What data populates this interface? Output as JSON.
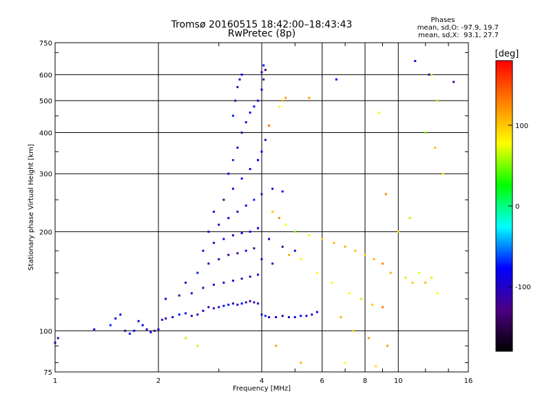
{
  "chart_data": {
    "type": "scatter",
    "title": "Tromsø 20160515 18:42:00–18:43:43",
    "subtitle": "RwPretec (8p)",
    "xlabel": "Frequency [MHz]",
    "ylabel": "Stationary phase Virtual Height [km]",
    "x_scale": "log",
    "y_scale": "log",
    "xlim": [
      1,
      16
    ],
    "ylim": [
      75,
      750
    ],
    "x_ticks": [
      "1",
      "2",
      "4",
      "6",
      "8",
      "10",
      "16"
    ],
    "x_tick_values": [
      1,
      2,
      4,
      6,
      8,
      10,
      16
    ],
    "y_ticks": [
      "75",
      "100",
      "200",
      "300",
      "400",
      "500",
      "600",
      "750"
    ],
    "y_tick_values": [
      75,
      100,
      200,
      300,
      400,
      500,
      600,
      750
    ],
    "grid": true,
    "legend": {
      "heading": "Phases",
      "lines": [
        "mean, sd,O: -97.9, 19.7",
        "mean, sd,X:  93.1, 27.7"
      ]
    },
    "colorbar": {
      "label": "[deg]",
      "range": [
        -180,
        180
      ],
      "ticks": [
        "100",
        "0",
        "-100"
      ],
      "tick_values": [
        100,
        0,
        -100
      ],
      "colormap": [
        "#000000",
        "#4b0082",
        "#0000ff",
        "#00ffff",
        "#00ff00",
        "#ffff00",
        "#ff8000",
        "#ff0000"
      ]
    },
    "series": [
      {
        "mean_phase": -97.9,
        "sd_phase": 19.7,
        "points": [
          [
            1.0,
            92
          ],
          [
            1.02,
            95
          ],
          [
            1.3,
            101
          ],
          [
            1.45,
            104
          ],
          [
            1.5,
            109
          ],
          [
            1.55,
            112
          ],
          [
            1.6,
            100
          ],
          [
            1.65,
            98
          ],
          [
            1.7,
            100
          ],
          [
            1.75,
            107
          ],
          [
            1.8,
            104
          ],
          [
            1.85,
            101
          ],
          [
            1.9,
            99
          ],
          [
            1.95,
            100
          ],
          [
            2.0,
            101
          ],
          [
            2.05,
            108
          ],
          [
            2.1,
            109
          ],
          [
            2.2,
            110
          ],
          [
            2.3,
            112
          ],
          [
            2.4,
            113
          ],
          [
            2.5,
            111
          ],
          [
            2.6,
            112
          ],
          [
            2.7,
            115
          ],
          [
            2.8,
            118
          ],
          [
            2.9,
            117
          ],
          [
            3.0,
            118
          ],
          [
            3.1,
            119
          ],
          [
            3.2,
            120
          ],
          [
            3.3,
            121
          ],
          [
            3.4,
            120
          ],
          [
            3.5,
            121
          ],
          [
            3.6,
            122
          ],
          [
            3.7,
            123
          ],
          [
            3.8,
            122
          ],
          [
            3.9,
            121
          ],
          [
            4.0,
            112
          ],
          [
            4.1,
            111
          ],
          [
            4.2,
            110
          ],
          [
            4.4,
            110
          ],
          [
            4.6,
            111
          ],
          [
            4.8,
            110
          ],
          [
            5.0,
            110
          ],
          [
            5.2,
            111
          ],
          [
            5.4,
            111
          ],
          [
            5.6,
            112
          ],
          [
            5.8,
            114
          ],
          [
            2.1,
            125
          ],
          [
            2.3,
            128
          ],
          [
            2.5,
            130
          ],
          [
            2.7,
            135
          ],
          [
            2.9,
            138
          ],
          [
            3.1,
            140
          ],
          [
            3.3,
            142
          ],
          [
            3.5,
            144
          ],
          [
            3.7,
            146
          ],
          [
            3.9,
            148
          ],
          [
            2.4,
            140
          ],
          [
            2.6,
            150
          ],
          [
            2.8,
            160
          ],
          [
            3.0,
            165
          ],
          [
            3.2,
            170
          ],
          [
            3.4,
            172
          ],
          [
            3.6,
            175
          ],
          [
            3.8,
            178
          ],
          [
            4.0,
            165
          ],
          [
            4.3,
            160
          ],
          [
            2.7,
            175
          ],
          [
            2.9,
            185
          ],
          [
            3.1,
            190
          ],
          [
            3.3,
            195
          ],
          [
            3.5,
            198
          ],
          [
            3.7,
            200
          ],
          [
            3.9,
            205
          ],
          [
            4.2,
            190
          ],
          [
            4.6,
            180
          ],
          [
            5.0,
            175
          ],
          [
            2.8,
            200
          ],
          [
            3.0,
            210
          ],
          [
            3.2,
            220
          ],
          [
            3.4,
            230
          ],
          [
            3.6,
            240
          ],
          [
            3.8,
            250
          ],
          [
            4.0,
            260
          ],
          [
            4.3,
            270
          ],
          [
            4.6,
            265
          ],
          [
            2.9,
            230
          ],
          [
            3.1,
            250
          ],
          [
            3.3,
            270
          ],
          [
            3.5,
            290
          ],
          [
            3.7,
            310
          ],
          [
            3.9,
            330
          ],
          [
            4.0,
            350
          ],
          [
            4.1,
            380
          ],
          [
            3.2,
            300
          ],
          [
            3.3,
            330
          ],
          [
            3.4,
            360
          ],
          [
            3.5,
            400
          ],
          [
            3.6,
            430
          ],
          [
            3.7,
            460
          ],
          [
            3.8,
            480
          ],
          [
            3.9,
            500
          ],
          [
            4.0,
            540
          ],
          [
            4.05,
            580
          ],
          [
            3.3,
            450
          ],
          [
            3.35,
            500
          ],
          [
            3.4,
            550
          ],
          [
            3.45,
            580
          ],
          [
            3.5,
            600
          ],
          [
            4.0,
            610
          ],
          [
            4.05,
            640
          ],
          [
            4.1,
            620
          ],
          [
            6.6,
            580
          ],
          [
            11.2,
            660
          ],
          [
            12.3,
            600
          ],
          [
            14.5,
            570
          ]
        ]
      },
      {
        "mean_phase": 93.1,
        "sd_phase": 27.7,
        "points": [
          [
            4.5,
            480
          ],
          [
            4.6,
            500
          ],
          [
            4.7,
            510
          ],
          [
            5.5,
            510
          ],
          [
            4.2,
            420
          ],
          [
            4.3,
            230
          ],
          [
            4.5,
            220
          ],
          [
            4.7,
            210
          ],
          [
            5.0,
            200
          ],
          [
            5.5,
            195
          ],
          [
            6.0,
            190
          ],
          [
            6.5,
            185
          ],
          [
            7.0,
            180
          ],
          [
            7.5,
            175
          ],
          [
            8.0,
            170
          ],
          [
            8.5,
            165
          ],
          [
            9.0,
            160
          ],
          [
            9.5,
            150
          ],
          [
            10.5,
            145
          ],
          [
            11.0,
            140
          ],
          [
            11.5,
            150
          ],
          [
            12.0,
            140
          ],
          [
            12.5,
            145
          ],
          [
            13.0,
            130
          ],
          [
            4.8,
            170
          ],
          [
            5.2,
            165
          ],
          [
            5.8,
            150
          ],
          [
            6.4,
            140
          ],
          [
            7.2,
            130
          ],
          [
            7.8,
            125
          ],
          [
            8.4,
            120
          ],
          [
            9.0,
            118
          ],
          [
            6.8,
            110
          ],
          [
            7.4,
            100
          ],
          [
            8.2,
            95
          ],
          [
            9.3,
            90
          ],
          [
            7.0,
            80
          ],
          [
            8.6,
            78
          ],
          [
            10.0,
            200
          ],
          [
            10.8,
            220
          ],
          [
            9.2,
            260
          ],
          [
            8.8,
            460
          ],
          [
            12.0,
            400
          ],
          [
            12.8,
            360
          ],
          [
            13.5,
            300
          ],
          [
            13.0,
            500
          ],
          [
            12.5,
            600
          ],
          [
            2.4,
            95
          ],
          [
            2.6,
            90
          ],
          [
            4.4,
            90
          ],
          [
            5.2,
            80
          ]
        ]
      }
    ]
  }
}
